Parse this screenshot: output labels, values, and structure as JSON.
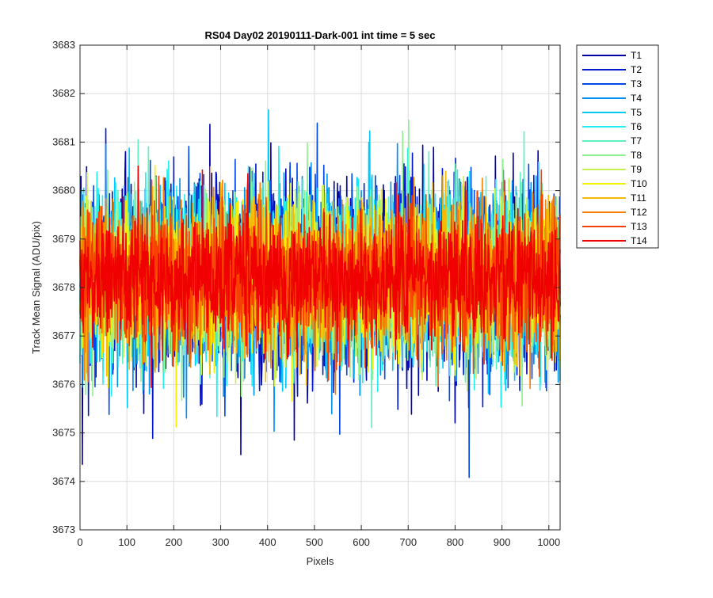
{
  "chart_data": {
    "type": "line",
    "title": "RS04 Day02 20190111-Dark-001 int time = 5 sec",
    "xlabel": "Pixels",
    "ylabel": "Track Mean Signal (ADU/pix)",
    "xlim": [
      0,
      1024
    ],
    "ylim": [
      3673,
      3683
    ],
    "x_ticks": [
      0,
      100,
      200,
      300,
      400,
      500,
      600,
      700,
      800,
      900,
      1000
    ],
    "y_ticks": [
      3673,
      3674,
      3675,
      3676,
      3677,
      3678,
      3679,
      3680,
      3681,
      3682,
      3683
    ],
    "grid": true,
    "legend_position": "outside-top-right",
    "approx_mean": 3678.2,
    "approx_range": [
      3674,
      3682.3
    ],
    "series": [
      {
        "name": "T1",
        "color": "#0000a8"
      },
      {
        "name": "T2",
        "color": "#0018d0"
      },
      {
        "name": "T3",
        "color": "#0048e8"
      },
      {
        "name": "T4",
        "color": "#0090f0"
      },
      {
        "name": "T5",
        "color": "#00c8f8"
      },
      {
        "name": "T6",
        "color": "#20f0f0"
      },
      {
        "name": "T7",
        "color": "#60f0c0"
      },
      {
        "name": "T8",
        "color": "#90f090"
      },
      {
        "name": "T9",
        "color": "#c8f050"
      },
      {
        "name": "T10",
        "color": "#f8f000"
      },
      {
        "name": "T11",
        "color": "#f8b800"
      },
      {
        "name": "T12",
        "color": "#f88000"
      },
      {
        "name": "T13",
        "color": "#f84000"
      },
      {
        "name": "T14",
        "color": "#f00000"
      }
    ]
  }
}
